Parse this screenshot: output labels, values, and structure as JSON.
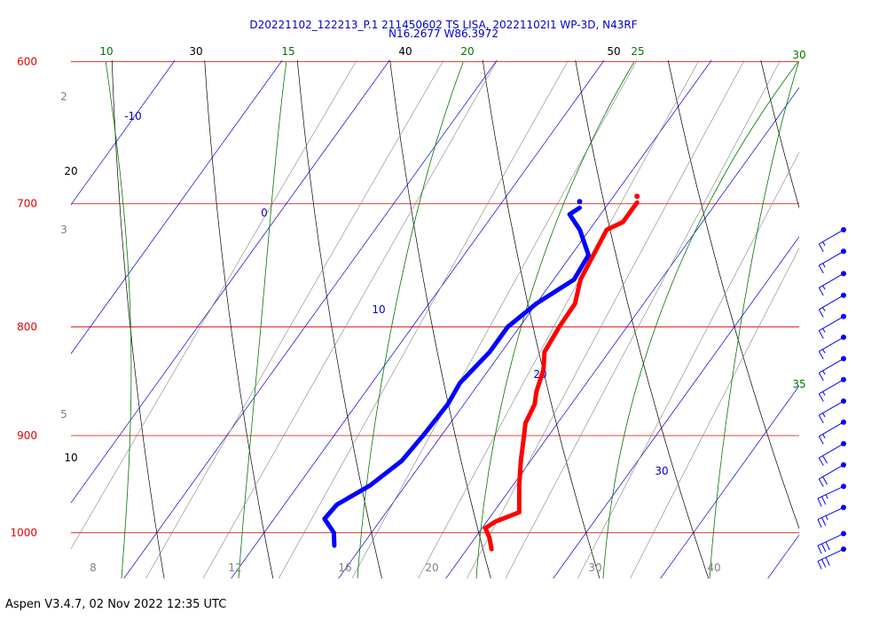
{
  "header": {
    "line1": "D20221102_122213_P.1 211450602 TS LISA, 20221102I1 WP-3D, N43RF",
    "line2": "N16.2677 W86.3972"
  },
  "footer": "Aspen V3.4.7, 02 Nov 2022  12:35 UTC",
  "colors": {
    "isobar": "#dd0000",
    "isotherm": "#0000cc",
    "dry_adiabat": "#000000",
    "moist_adiabat": "#007700",
    "mixing_ratio": "#808080",
    "temperature_trace": "#ff0000",
    "dewpoint_trace": "#0000ff",
    "wind_barb": "#0000ff"
  },
  "chart_data": {
    "type": "line",
    "diagram": "skew-T log-P",
    "pressure_labels": [
      "600",
      "700",
      "800",
      "900",
      "1000"
    ],
    "isotherm_labels": [
      "-10",
      "0",
      "10",
      "20",
      "30"
    ],
    "dry_adiabat_top_labels": [
      "30",
      "40",
      "50"
    ],
    "dry_adiabat_left_labels": [
      "20",
      "10"
    ],
    "moist_adiabat_labels": [
      "10",
      "15",
      "20",
      "25",
      "30",
      "35"
    ],
    "mixing_ratio_left_labels": [
      "2",
      "3",
      "5"
    ],
    "mixing_ratio_bottom_labels": [
      "8",
      "12",
      "16",
      "20",
      "30",
      "40"
    ],
    "temperature_trace": [
      {
        "p": 699,
        "t": 12.6
      },
      {
        "p": 714,
        "t": 12.6
      },
      {
        "p": 720,
        "t": 11.6
      },
      {
        "p": 760,
        "t": 12.5
      },
      {
        "p": 780,
        "t": 13.6
      },
      {
        "p": 800,
        "t": 13.7
      },
      {
        "p": 822,
        "t": 14.0
      },
      {
        "p": 838,
        "t": 15.1
      },
      {
        "p": 858,
        "t": 15.9
      },
      {
        "p": 870,
        "t": 16.6
      },
      {
        "p": 888,
        "t": 17.0
      },
      {
        "p": 900,
        "t": 17.7
      },
      {
        "p": 925,
        "t": 19.1
      },
      {
        "p": 950,
        "t": 20.6
      },
      {
        "p": 978,
        "t": 22.4
      },
      {
        "p": 988,
        "t": 20.8
      },
      {
        "p": 995,
        "t": 20.3
      },
      {
        "p": 1005,
        "t": 21.3
      },
      {
        "p": 1018,
        "t": 22.3
      }
    ],
    "dewpoint_trace": [
      {
        "p": 703,
        "t": 7.6
      },
      {
        "p": 708,
        "t": 7.1
      },
      {
        "p": 720,
        "t": 9.1
      },
      {
        "p": 740,
        "t": 11.6
      },
      {
        "p": 760,
        "t": 11.9
      },
      {
        "p": 780,
        "t": 10.0
      },
      {
        "p": 800,
        "t": 8.9
      },
      {
        "p": 822,
        "t": 8.9
      },
      {
        "p": 850,
        "t": 8.2
      },
      {
        "p": 870,
        "t": 8.5
      },
      {
        "p": 900,
        "t": 8.3
      },
      {
        "p": 925,
        "t": 8.0
      },
      {
        "p": 950,
        "t": 6.7
      },
      {
        "p": 970,
        "t": 4.9
      },
      {
        "p": 985,
        "t": 4.7
      },
      {
        "p": 1000,
        "t": 6.5
      },
      {
        "p": 1014,
        "t": 7.4
      }
    ],
    "wind_barbs": [
      {
        "p": 720,
        "speed_kt": 15
      },
      {
        "p": 737,
        "speed_kt": 15
      },
      {
        "p": 755,
        "speed_kt": 15
      },
      {
        "p": 773,
        "speed_kt": 15
      },
      {
        "p": 791,
        "speed_kt": 15
      },
      {
        "p": 809,
        "speed_kt": 15
      },
      {
        "p": 828,
        "speed_kt": 15
      },
      {
        "p": 847,
        "speed_kt": 15
      },
      {
        "p": 867,
        "speed_kt": 15
      },
      {
        "p": 887,
        "speed_kt": 15
      },
      {
        "p": 908,
        "speed_kt": 20
      },
      {
        "p": 929,
        "speed_kt": 20
      },
      {
        "p": 951,
        "speed_kt": 25
      },
      {
        "p": 973,
        "speed_kt": 25
      },
      {
        "p": 1001,
        "speed_kt": 30
      },
      {
        "p": 1018,
        "speed_kt": 30
      }
    ],
    "grid": true
  }
}
